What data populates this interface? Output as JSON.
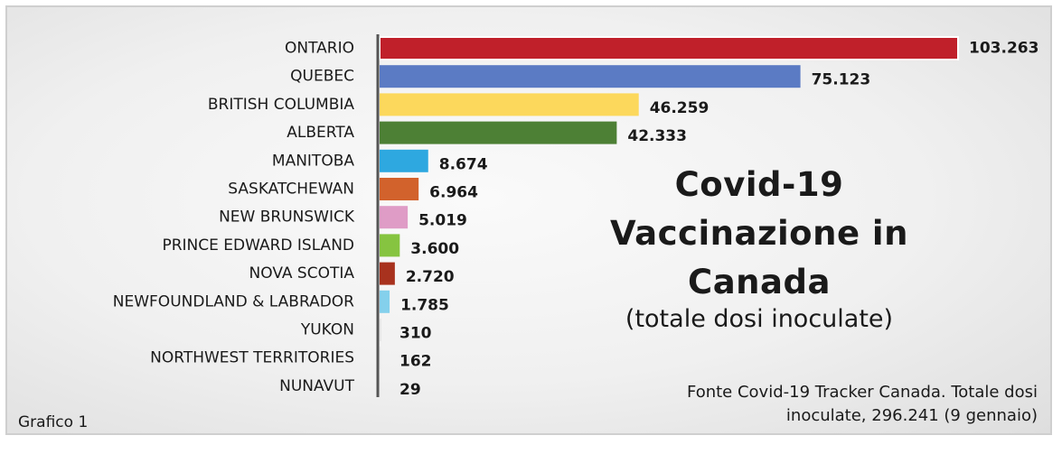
{
  "chart_data": {
    "type": "bar",
    "orientation": "horizontal",
    "title": "Covid-19 Vaccinazione in Canada",
    "subtitle": "(totale dosi inoculate)",
    "categories": [
      "ONTARIO",
      "QUEBEC",
      "BRITISH COLUMBIA",
      "ALBERTA",
      "MANITOBA",
      "SASKATCHEWAN",
      "NEW BRUNSWICK",
      "PRINCE EDWARD ISLAND",
      "NOVA SCOTIA",
      "NEWFOUNDLAND & LABRADOR",
      "YUKON",
      "NORTHWEST TERRITORIES",
      "NUNAVUT"
    ],
    "values": [
      103263,
      75123,
      46259,
      42333,
      8674,
      6964,
      5019,
      3600,
      2720,
      1785,
      310,
      162,
      29
    ],
    "value_labels": [
      "103.263",
      "75.123",
      "46.259",
      "42.333",
      "8.674",
      "6.964",
      "5.019",
      "3.600",
      "2.720",
      "1.785",
      "310",
      "162",
      "29"
    ],
    "colors": [
      "#c0202a",
      "#5b7bc4",
      "#fcd85c",
      "#4d8035",
      "#2ea8e0",
      "#d2622c",
      "#df9cc6",
      "#86c440",
      "#a8321e",
      "#84d0ec",
      "#e8e8e8",
      "#e8e8e8",
      "#e8e8e8"
    ],
    "xlim": [
      0,
      103263
    ],
    "grid": false,
    "legend": "none"
  },
  "source_line1": "Fonte Covid-19 Tracker Canada.  Totale dosi",
  "source_line2": "inoculate, 296.241 (9 gennaio)",
  "caption": "Grafico 1",
  "title_lines": [
    "Covid-19",
    "Vaccinazione in",
    "Canada"
  ]
}
